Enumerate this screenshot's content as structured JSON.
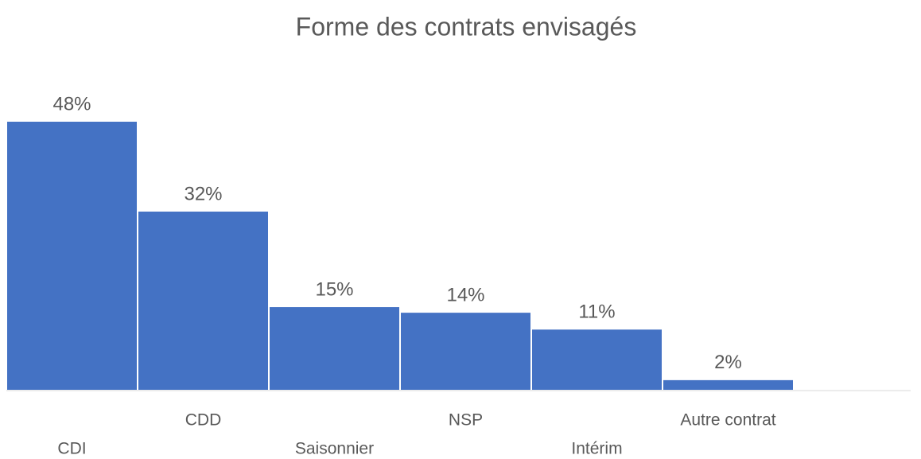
{
  "chart_data": {
    "type": "bar",
    "title": "Forme des contrats envisagés",
    "categories": [
      "CDI",
      "CDD",
      "Saisonnier",
      "NSP",
      "Intérim",
      "Autre contrat"
    ],
    "values": [
      48,
      32,
      15,
      14,
      11,
      2
    ],
    "value_labels": [
      "48%",
      "32%",
      "15%",
      "14%",
      "11%",
      "2%"
    ],
    "color": "#4472c4"
  }
}
